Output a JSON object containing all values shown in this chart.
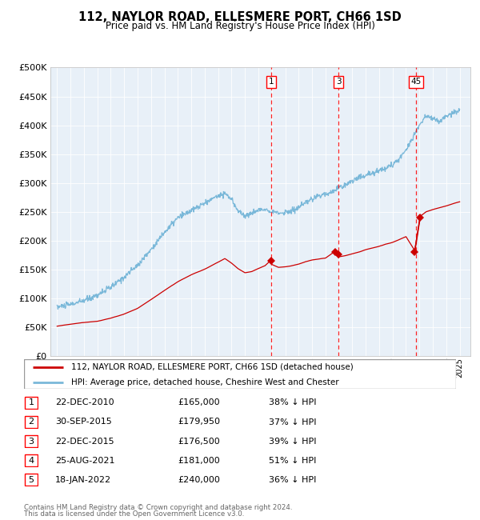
{
  "title": "112, NAYLOR ROAD, ELLESMERE PORT, CH66 1SD",
  "subtitle": "Price paid vs. HM Land Registry's House Price Index (HPI)",
  "hpi_color": "#7ab8d9",
  "price_color": "#cc0000",
  "plot_bg": "#e8f0f8",
  "ylim": [
    0,
    500000
  ],
  "yticks": [
    0,
    50000,
    100000,
    150000,
    200000,
    250000,
    300000,
    350000,
    400000,
    450000,
    500000
  ],
  "xlim_left": 1994.5,
  "xlim_right": 2025.8,
  "sale_events": [
    {
      "label": "1",
      "date": 2010.97,
      "price": 165000
    },
    {
      "label": "2",
      "date": 2015.74,
      "price": 179950
    },
    {
      "label": "3",
      "date": 2015.97,
      "price": 176500
    },
    {
      "label": "4",
      "date": 2021.65,
      "price": 181000
    },
    {
      "label": "5",
      "date": 2022.05,
      "price": 240000
    }
  ],
  "vlines": [
    {
      "x": 2010.97,
      "label": "1"
    },
    {
      "x": 2015.97,
      "label": "3"
    },
    {
      "x": 2021.65,
      "label": "4"
    },
    {
      "x": 2022.05,
      "label": "5"
    }
  ],
  "vline_groups": [
    {
      "x": 2010.97,
      "label": "1"
    },
    {
      "x": 2015.97,
      "label": "3"
    },
    {
      "x": 2021.75,
      "label": "45"
    }
  ],
  "table_rows": [
    [
      "1",
      "22-DEC-2010",
      "£165,000",
      "38% ↓ HPI"
    ],
    [
      "2",
      "30-SEP-2015",
      "£179,950",
      "37% ↓ HPI"
    ],
    [
      "3",
      "22-DEC-2015",
      "£176,500",
      "39% ↓ HPI"
    ],
    [
      "4",
      "25-AUG-2021",
      "£181,000",
      "51% ↓ HPI"
    ],
    [
      "5",
      "18-JAN-2022",
      "£240,000",
      "36% ↓ HPI"
    ]
  ],
  "legend_line1": "112, NAYLOR ROAD, ELLESMERE PORT, CH66 1SD (detached house)",
  "legend_line2": "HPI: Average price, detached house, Cheshire West and Chester",
  "footer1": "Contains HM Land Registry data © Crown copyright and database right 2024.",
  "footer2": "This data is licensed under the Open Government Licence v3.0.",
  "hpi_anchors": [
    [
      1995.0,
      85000
    ],
    [
      1996.0,
      90000
    ],
    [
      1997.0,
      97000
    ],
    [
      1998.0,
      107000
    ],
    [
      1999.0,
      120000
    ],
    [
      2000.0,
      138000
    ],
    [
      2001.0,
      158000
    ],
    [
      2002.0,
      185000
    ],
    [
      2003.0,
      215000
    ],
    [
      2004.0,
      240000
    ],
    [
      2005.0,
      252000
    ],
    [
      2006.0,
      265000
    ],
    [
      2007.0,
      278000
    ],
    [
      2007.5,
      282000
    ],
    [
      2008.0,
      270000
    ],
    [
      2008.5,
      252000
    ],
    [
      2009.0,
      242000
    ],
    [
      2009.5,
      248000
    ],
    [
      2010.0,
      252000
    ],
    [
      2010.5,
      255000
    ],
    [
      2011.0,
      252000
    ],
    [
      2011.5,
      248000
    ],
    [
      2012.0,
      250000
    ],
    [
      2012.5,
      252000
    ],
    [
      2013.0,
      258000
    ],
    [
      2013.5,
      265000
    ],
    [
      2014.0,
      272000
    ],
    [
      2014.5,
      278000
    ],
    [
      2015.0,
      282000
    ],
    [
      2015.5,
      285000
    ],
    [
      2016.0,
      292000
    ],
    [
      2016.5,
      298000
    ],
    [
      2017.0,
      305000
    ],
    [
      2017.5,
      310000
    ],
    [
      2018.0,
      315000
    ],
    [
      2018.5,
      318000
    ],
    [
      2019.0,
      322000
    ],
    [
      2019.5,
      328000
    ],
    [
      2020.0,
      332000
    ],
    [
      2020.5,
      342000
    ],
    [
      2021.0,
      358000
    ],
    [
      2021.5,
      378000
    ],
    [
      2022.0,
      400000
    ],
    [
      2022.5,
      415000
    ],
    [
      2023.0,
      410000
    ],
    [
      2023.5,
      405000
    ],
    [
      2024.0,
      415000
    ],
    [
      2024.5,
      420000
    ],
    [
      2025.0,
      425000
    ]
  ],
  "pp_anchors": [
    [
      1995.0,
      52000
    ],
    [
      1996.0,
      55000
    ],
    [
      1997.0,
      58000
    ],
    [
      1998.0,
      60000
    ],
    [
      1999.0,
      65000
    ],
    [
      2000.0,
      72000
    ],
    [
      2001.0,
      82000
    ],
    [
      2002.0,
      97000
    ],
    [
      2003.0,
      113000
    ],
    [
      2004.0,
      128000
    ],
    [
      2005.0,
      140000
    ],
    [
      2006.0,
      150000
    ],
    [
      2007.0,
      162000
    ],
    [
      2007.5,
      168000
    ],
    [
      2008.0,
      160000
    ],
    [
      2008.5,
      150000
    ],
    [
      2009.0,
      143000
    ],
    [
      2009.5,
      145000
    ],
    [
      2010.0,
      150000
    ],
    [
      2010.5,
      155000
    ],
    [
      2010.97,
      165000
    ],
    [
      2011.0,
      157000
    ],
    [
      2011.5,
      152000
    ],
    [
      2012.0,
      153000
    ],
    [
      2012.5,
      155000
    ],
    [
      2013.0,
      158000
    ],
    [
      2013.5,
      162000
    ],
    [
      2014.0,
      165000
    ],
    [
      2015.0,
      168000
    ],
    [
      2015.74,
      179950
    ],
    [
      2015.97,
      176500
    ],
    [
      2016.0,
      170000
    ],
    [
      2016.5,
      172000
    ],
    [
      2017.0,
      175000
    ],
    [
      2017.5,
      178000
    ],
    [
      2018.0,
      182000
    ],
    [
      2018.5,
      185000
    ],
    [
      2019.0,
      188000
    ],
    [
      2019.5,
      192000
    ],
    [
      2020.0,
      195000
    ],
    [
      2020.5,
      200000
    ],
    [
      2021.0,
      205000
    ],
    [
      2021.65,
      181000
    ],
    [
      2022.05,
      240000
    ],
    [
      2022.5,
      248000
    ],
    [
      2023.0,
      252000
    ],
    [
      2023.5,
      255000
    ],
    [
      2024.0,
      258000
    ],
    [
      2024.5,
      262000
    ],
    [
      2025.0,
      265000
    ]
  ]
}
